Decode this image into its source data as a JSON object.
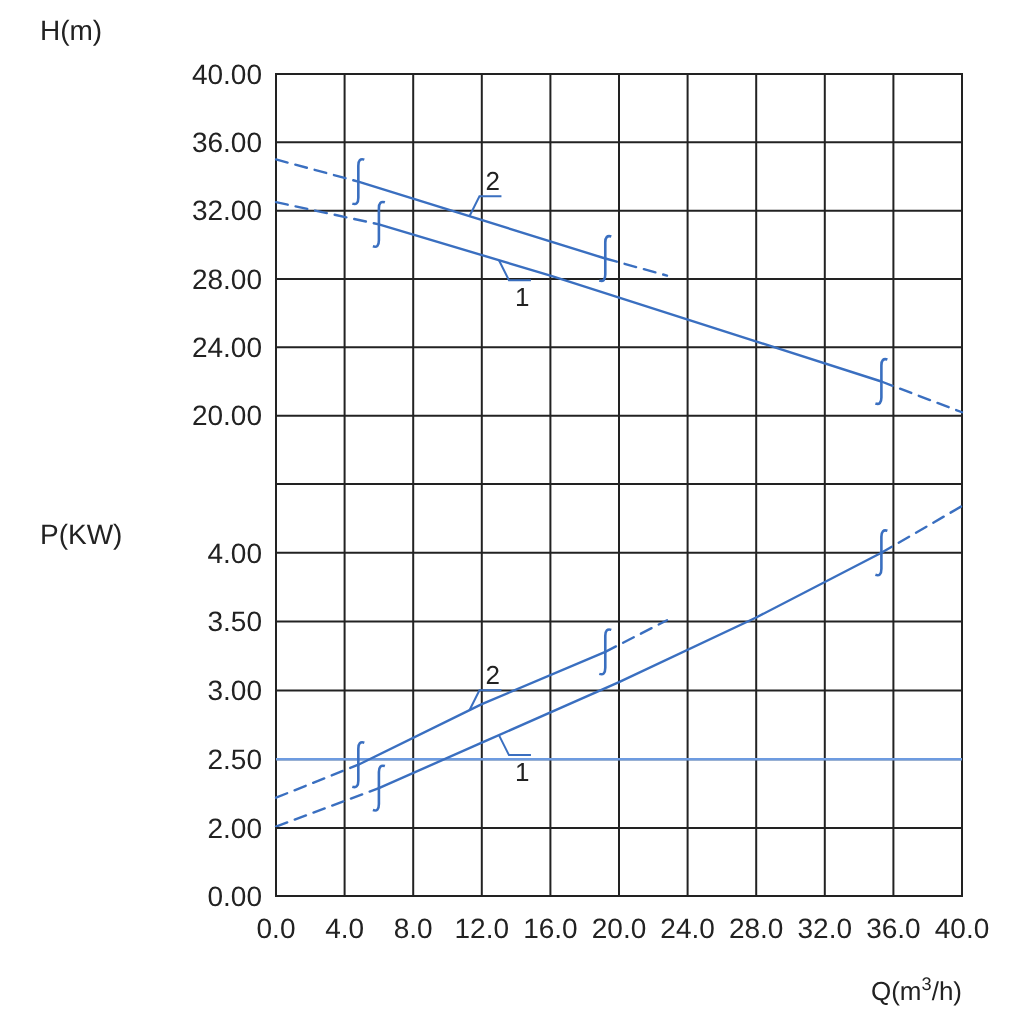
{
  "chart_data": [
    {
      "type": "line",
      "ylabel": "H(m)",
      "xlim": [
        0,
        40
      ],
      "xticks": [
        0,
        4,
        8,
        12,
        16,
        20,
        24,
        28,
        32,
        36,
        40
      ],
      "ylim": [
        16,
        40
      ],
      "yticks": [
        {
          "value": 16,
          "label": null
        },
        {
          "value": 20,
          "label": "20.00"
        },
        {
          "value": 24,
          "label": "24.00"
        },
        {
          "value": 28,
          "label": "28.00"
        },
        {
          "value": 32,
          "label": "32.00"
        },
        {
          "value": 36,
          "label": "36.00"
        },
        {
          "value": 40,
          "label": "40.00"
        }
      ],
      "grid": true,
      "tick_labels": "y",
      "series": [
        {
          "name": "2",
          "color": "#3a6fc0",
          "line_style": "solid",
          "x": [
            4.8,
            19.2
          ],
          "values": [
            33.7,
            29.2
          ]
        },
        {
          "color": "#3a6fc0",
          "line_style": "dashed",
          "x": [
            0,
            4.8
          ],
          "values": [
            35.0,
            33.7
          ]
        },
        {
          "color": "#3a6fc0",
          "line_style": "dashed",
          "x": [
            19.2,
            22.8
          ],
          "values": [
            29.2,
            28.2
          ]
        },
        {
          "name": "1",
          "color": "#3a6fc0",
          "line_style": "solid",
          "x": [
            6,
            16,
            35.3
          ],
          "values": [
            31.2,
            28.2,
            22.0
          ]
        },
        {
          "color": "#3a6fc0",
          "line_style": "dashed",
          "x": [
            0,
            6
          ],
          "values": [
            32.5,
            31.2
          ]
        },
        {
          "color": "#3a6fc0",
          "line_style": "dashed",
          "x": [
            35.3,
            40
          ],
          "values": [
            22.0,
            20.2
          ]
        }
      ]
    },
    {
      "type": "line",
      "ylabel": "P(KW)",
      "xlim": [
        0,
        40
      ],
      "xticks": [
        0,
        4,
        8,
        12,
        16,
        20,
        24,
        28,
        32,
        36,
        40
      ],
      "tick_labels": "y",
      "ylim": [
        2,
        4.5
      ],
      "yticks": [
        {
          "value": 2.5,
          "label": "2.50"
        },
        {
          "value": 3,
          "label": "3.00"
        },
        {
          "value": 3.5,
          "label": "3.50"
        },
        {
          "value": 4,
          "label": "4.00"
        },
        {
          "value": 4.5,
          "label": null
        }
      ],
      "grid": true,
      "ref_lines": [
        {
          "axis": "y",
          "value": 2.5,
          "color": "#6d9be0"
        }
      ],
      "series": [
        {
          "name": "2",
          "color": "#3a6fc0",
          "line_style": "solid",
          "x": [
            4.8,
            12,
            19.2
          ],
          "values": [
            2.46,
            2.9,
            3.28
          ]
        },
        {
          "color": "#3a6fc0",
          "line_style": "dashed",
          "x": [
            0,
            4.8
          ],
          "values": [
            2.22,
            2.46
          ]
        },
        {
          "color": "#3a6fc0",
          "line_style": "dashed",
          "x": [
            19.2,
            22.8
          ],
          "values": [
            3.28,
            3.51
          ]
        },
        {
          "name": "1",
          "color": "#3a6fc0",
          "line_style": "solid",
          "x": [
            6,
            12,
            20,
            28,
            35.3
          ],
          "values": [
            2.29,
            2.62,
            3.06,
            3.53,
            4.0
          ]
        },
        {
          "color": "#3a6fc0",
          "line_style": "dashed",
          "x": [
            0,
            6
          ],
          "values": [
            2.01,
            2.29
          ]
        },
        {
          "color": "#3a6fc0",
          "line_style": "dashed",
          "x": [
            35.3,
            40
          ],
          "values": [
            4.0,
            4.34
          ]
        }
      ]
    },
    {
      "type": "line",
      "xlabel": "Q(m$^{3}$/h)",
      "xlim": [
        0,
        40
      ],
      "xticks": [
        {
          "value": 0,
          "label": "0.0"
        },
        {
          "value": 4,
          "label": "4.0"
        },
        {
          "value": 8,
          "label": "8.0"
        },
        {
          "value": 12,
          "label": "12.0"
        },
        {
          "value": 16,
          "label": "16.0"
        },
        {
          "value": 20,
          "label": "20.0"
        },
        {
          "value": 24,
          "label": "24.0"
        },
        {
          "value": 28,
          "label": "28.0"
        },
        {
          "value": 32,
          "label": "32.0"
        },
        {
          "value": 36,
          "label": "36.0"
        },
        {
          "value": 40,
          "label": "40.0"
        }
      ],
      "ylim": [
        0,
        2
      ],
      "yticks": [
        {
          "value": 0,
          "label": "0.00"
        },
        {
          "value": 2,
          "label": "2.00"
        }
      ],
      "grid": true
    }
  ]
}
